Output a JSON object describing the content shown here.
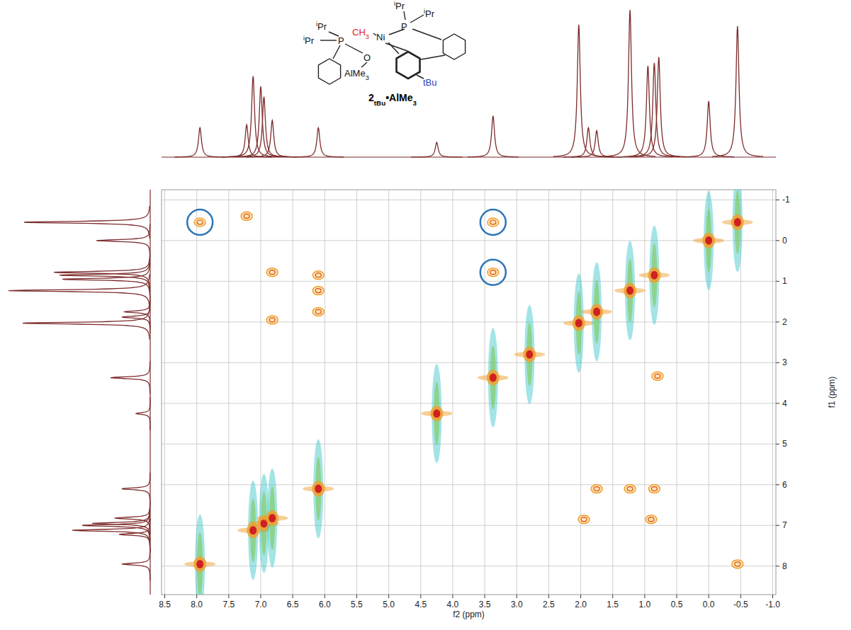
{
  "chart_data": {
    "type": "contour",
    "x_label": "f2 (ppm)",
    "y_label": "f1 (ppm)",
    "xlim": [
      8.55,
      -1.05
    ],
    "ylim": [
      -1.25,
      8.7
    ],
    "xticks": [
      8.5,
      {
        "value": 8,
        "label": "8.0"
      },
      7.5,
      {
        "value": 7,
        "label": "7.0"
      },
      6.5,
      {
        "value": 6,
        "label": "6.0"
      },
      5.5,
      {
        "value": 5,
        "label": "5.0"
      },
      4.5,
      {
        "value": 4,
        "label": "4.0"
      },
      3.5,
      {
        "value": 3,
        "label": "3.0"
      },
      2.5,
      {
        "value": 2,
        "label": "2.0"
      },
      1.5,
      {
        "value": 1,
        "label": "1.0"
      },
      0.5,
      {
        "value": 0,
        "label": "0.0"
      },
      -0.5,
      {
        "value": -1,
        "label": "-1.0"
      }
    ],
    "yticks": [
      -1,
      0,
      1,
      2,
      3,
      4,
      5,
      6,
      7,
      8
    ],
    "grid": true,
    "projection": {
      "x": [
        7.95,
        7.22,
        7.12,
        7.0,
        6.95,
        6.82,
        6.1,
        4.25,
        3.37,
        2.03,
        1.88,
        1.75,
        1.23,
        0.95,
        0.85,
        0.78,
        0.0,
        -0.45
      ],
      "values": [
        20,
        22,
        55,
        48,
        41,
        25,
        20,
        10,
        28,
        90,
        20,
        18,
        100,
        62,
        64,
        68,
        38,
        89
      ],
      "color": "#7d2b2b"
    },
    "series": [
      {
        "type": "diagonal",
        "color": "#33c3c8",
        "x": [
          7.95,
          7.12,
          6.95,
          6.82,
          6.1,
          4.25,
          3.37,
          2.8,
          2.03,
          1.75,
          1.23,
          0.85,
          0.0,
          -0.45
        ],
        "values": [
          7.95,
          7.12,
          6.95,
          6.82,
          6.1,
          4.25,
          3.37,
          2.8,
          2.03,
          1.75,
          1.23,
          0.85,
          0.0,
          -0.45
        ]
      },
      {
        "type": "cross",
        "color": "#f0a030",
        "x": [
          6.82,
          6.82,
          6.1,
          6.1,
          6.1,
          7.22,
          0.8,
          1.95,
          1.75,
          1.23,
          0.85,
          0.9,
          -0.45
        ],
        "values": [
          0.78,
          1.95,
          0.85,
          1.23,
          1.75,
          -0.6,
          3.33,
          6.85,
          6.1,
          6.1,
          6.1,
          6.85,
          7.95
        ]
      },
      {
        "type": "cross",
        "marker": "circle",
        "color": "#f0a030",
        "x": [
          7.95,
          3.37,
          3.37
        ],
        "values": [
          -0.45,
          -0.45,
          0.78
        ]
      }
    ]
  },
  "structure": {
    "labels": [
      {
        "parts": [
          {
            "text": "i",
            "sup": true
          },
          {
            "text": "Pr"
          }
        ]
      },
      {
        "parts": [
          {
            "text": "i",
            "sup": true
          },
          {
            "text": "Pr"
          }
        ]
      },
      {
        "parts": [
          {
            "text": "P"
          }
        ]
      },
      {
        "parts": [
          {
            "text": "CH"
          },
          {
            "text": "3",
            "sub": true
          }
        ],
        "color": "#e02020"
      },
      {
        "parts": [
          {
            "text": "Ni"
          }
        ]
      },
      {
        "parts": [
          {
            "text": "i",
            "sup": true
          },
          {
            "text": "Pr"
          }
        ]
      },
      {
        "parts": [
          {
            "text": "i",
            "sup": true
          },
          {
            "text": "Pr"
          }
        ]
      },
      {
        "parts": [
          {
            "text": "P"
          }
        ]
      },
      {
        "parts": [
          {
            "text": "O"
          }
        ]
      },
      {
        "parts": [
          {
            "text": "AlMe"
          },
          {
            "text": "3",
            "sub": true
          }
        ]
      },
      {
        "parts": [
          {
            "text": "tBu"
          }
        ],
        "color": "#1f3fbf"
      },
      {
        "parts": [
          {
            "text": "2"
          },
          {
            "text": "tBu",
            "sub": true
          },
          {
            "text": "•AlMe"
          },
          {
            "text": "3",
            "sub": true
          }
        ],
        "color": "#000000"
      }
    ]
  }
}
